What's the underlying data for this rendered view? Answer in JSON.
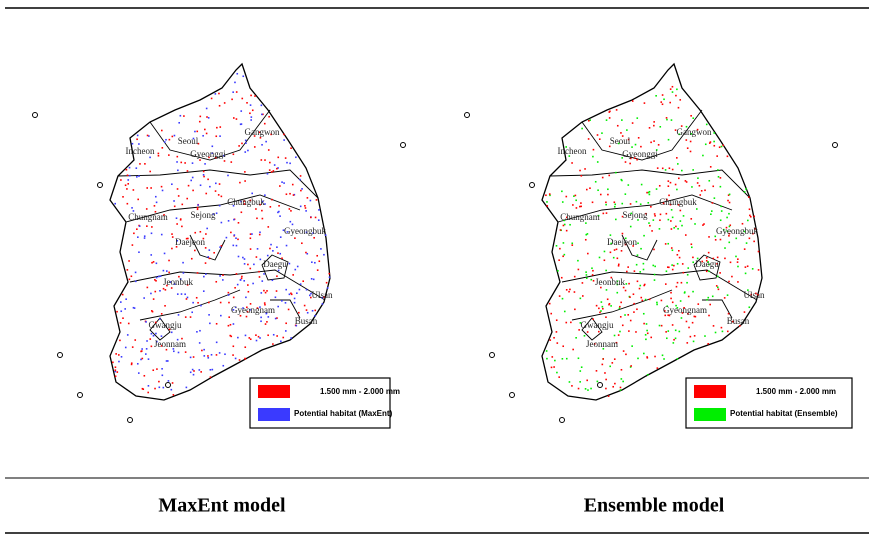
{
  "maps": [
    {
      "regions": [
        "Gangwon",
        "Seoul",
        "Incheon",
        "Gyeonggi",
        "Chungnam",
        "Sejong",
        "Chungbuk",
        "Gyeongbuk",
        "Daejeon",
        "Daegu",
        "Jeonbuk",
        "Ulsan",
        "Gyeongnam",
        "Busan",
        "Gwangju",
        "Jeonnam"
      ],
      "legend": [
        {
          "label": "1.500 mm - 2.000 mm",
          "color": "#ff0000"
        },
        {
          "label": "Potential habitat (MaxEnt)",
          "color": "#3a3aff"
        }
      ],
      "caption": "MaxEnt model"
    },
    {
      "regions": [
        "Gangwon",
        "Seoul",
        "Incheon",
        "Gyeonggi",
        "Chungnam",
        "Sejong",
        "Chungbuk",
        "Gyeongbuk",
        "Daejeon",
        "Daegu",
        "Jeonbuk",
        "Ulsan",
        "Gyeongnam",
        "Busan",
        "Gwangju",
        "Jeonnam"
      ],
      "legend": [
        {
          "label": "1.500 mm - 2.000 mm",
          "color": "#ff0000"
        },
        {
          "label": "Potential habitat (Ensemble)",
          "color": "#00ee00"
        }
      ],
      "caption": "Ensemble model"
    }
  ]
}
